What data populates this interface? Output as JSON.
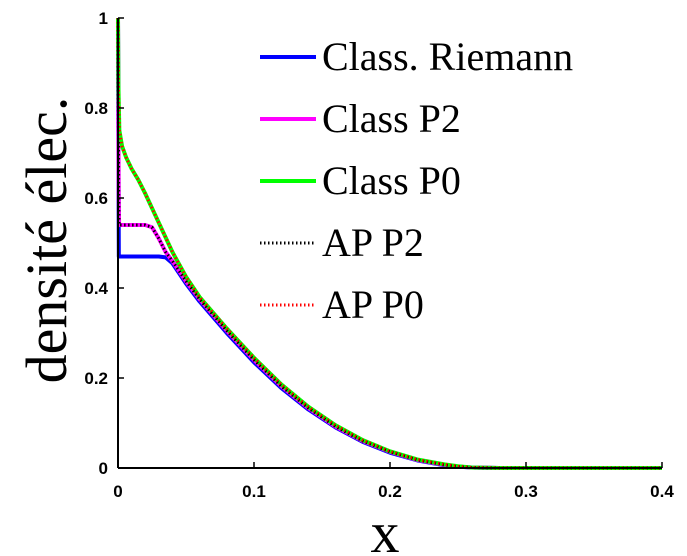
{
  "chart_data": {
    "type": "line",
    "title": "",
    "xlabel": "x",
    "ylabel": "densité élec.",
    "xlim": [
      0,
      0.4
    ],
    "ylim": [
      0,
      1
    ],
    "xticks": [
      "0",
      "0.1",
      "0.2",
      "0.3",
      "0.4"
    ],
    "yticks": [
      "0",
      "0.2",
      "0.4",
      "0.6",
      "0.8",
      "1"
    ],
    "grid": false,
    "legend_position": "top-right",
    "series": [
      {
        "name": "Class. Riemann",
        "color": "#0000ff",
        "style": "solid",
        "x": [
          0,
          0.0005,
          0.0006,
          0.01,
          0.02,
          0.03,
          0.035,
          0.04,
          0.05,
          0.06,
          0.08,
          0.1,
          0.12,
          0.14,
          0.16,
          0.18,
          0.2,
          0.22,
          0.24,
          0.25,
          0.26,
          0.28,
          0.3,
          0.35,
          0.4
        ],
        "y": [
          1.0,
          0.55,
          0.47,
          0.47,
          0.47,
          0.47,
          0.468,
          0.455,
          0.41,
          0.37,
          0.3,
          0.235,
          0.178,
          0.13,
          0.09,
          0.058,
          0.034,
          0.017,
          0.006,
          0.003,
          0.001,
          0,
          0,
          0,
          0
        ]
      },
      {
        "name": "Class P2",
        "color": "#ff00ff",
        "style": "solid",
        "x": [
          0,
          0.0005,
          0.0008,
          0.005,
          0.01,
          0.02,
          0.025,
          0.03,
          0.035,
          0.04,
          0.05,
          0.06,
          0.08,
          0.1,
          0.12,
          0.14,
          0.16,
          0.18,
          0.2,
          0.22,
          0.24,
          0.25,
          0.26,
          0.28,
          0.3,
          0.35,
          0.4
        ],
        "y": [
          1.0,
          0.62,
          0.54,
          0.54,
          0.54,
          0.54,
          0.535,
          0.51,
          0.48,
          0.46,
          0.415,
          0.375,
          0.305,
          0.24,
          0.182,
          0.133,
          0.092,
          0.06,
          0.036,
          0.018,
          0.007,
          0.003,
          0.001,
          0,
          0,
          0,
          0
        ]
      },
      {
        "name": "Class P0",
        "color": "#00ff00",
        "style": "solid",
        "x": [
          0,
          0.0003,
          0.001,
          0.003,
          0.006,
          0.01,
          0.015,
          0.02,
          0.03,
          0.04,
          0.05,
          0.06,
          0.08,
          0.1,
          0.12,
          0.14,
          0.16,
          0.18,
          0.2,
          0.22,
          0.24,
          0.25,
          0.26,
          0.28,
          0.3,
          0.35,
          0.4
        ],
        "y": [
          1.0,
          0.85,
          0.75,
          0.715,
          0.69,
          0.665,
          0.64,
          0.61,
          0.545,
          0.48,
          0.425,
          0.38,
          0.31,
          0.245,
          0.186,
          0.136,
          0.095,
          0.062,
          0.037,
          0.019,
          0.008,
          0.004,
          0.001,
          0,
          0,
          0,
          0
        ]
      },
      {
        "name": "AP P2",
        "color": "#000000",
        "style": "dotted",
        "x": [
          0,
          0.0005,
          0.0008,
          0.005,
          0.01,
          0.02,
          0.025,
          0.03,
          0.035,
          0.04,
          0.05,
          0.06,
          0.08,
          0.1,
          0.12,
          0.14,
          0.16,
          0.18,
          0.2,
          0.22,
          0.24,
          0.25,
          0.26,
          0.28,
          0.3,
          0.35,
          0.4
        ],
        "y": [
          1.0,
          0.62,
          0.54,
          0.54,
          0.54,
          0.54,
          0.535,
          0.51,
          0.48,
          0.46,
          0.415,
          0.375,
          0.305,
          0.24,
          0.182,
          0.133,
          0.092,
          0.06,
          0.036,
          0.018,
          0.007,
          0.003,
          0.001,
          0,
          0,
          0,
          0
        ]
      },
      {
        "name": "AP P0",
        "color": "#ff0000",
        "style": "dotted",
        "x": [
          0,
          0.0003,
          0.001,
          0.003,
          0.006,
          0.01,
          0.015,
          0.02,
          0.03,
          0.04,
          0.05,
          0.06,
          0.08,
          0.1,
          0.12,
          0.14,
          0.16,
          0.18,
          0.2,
          0.22,
          0.24,
          0.25,
          0.26,
          0.28,
          0.3,
          0.35,
          0.4
        ],
        "y": [
          1.0,
          0.85,
          0.75,
          0.715,
          0.69,
          0.665,
          0.64,
          0.61,
          0.545,
          0.48,
          0.425,
          0.38,
          0.31,
          0.245,
          0.186,
          0.136,
          0.095,
          0.062,
          0.037,
          0.019,
          0.008,
          0.004,
          0.001,
          0,
          0,
          0,
          0
        ]
      }
    ]
  }
}
